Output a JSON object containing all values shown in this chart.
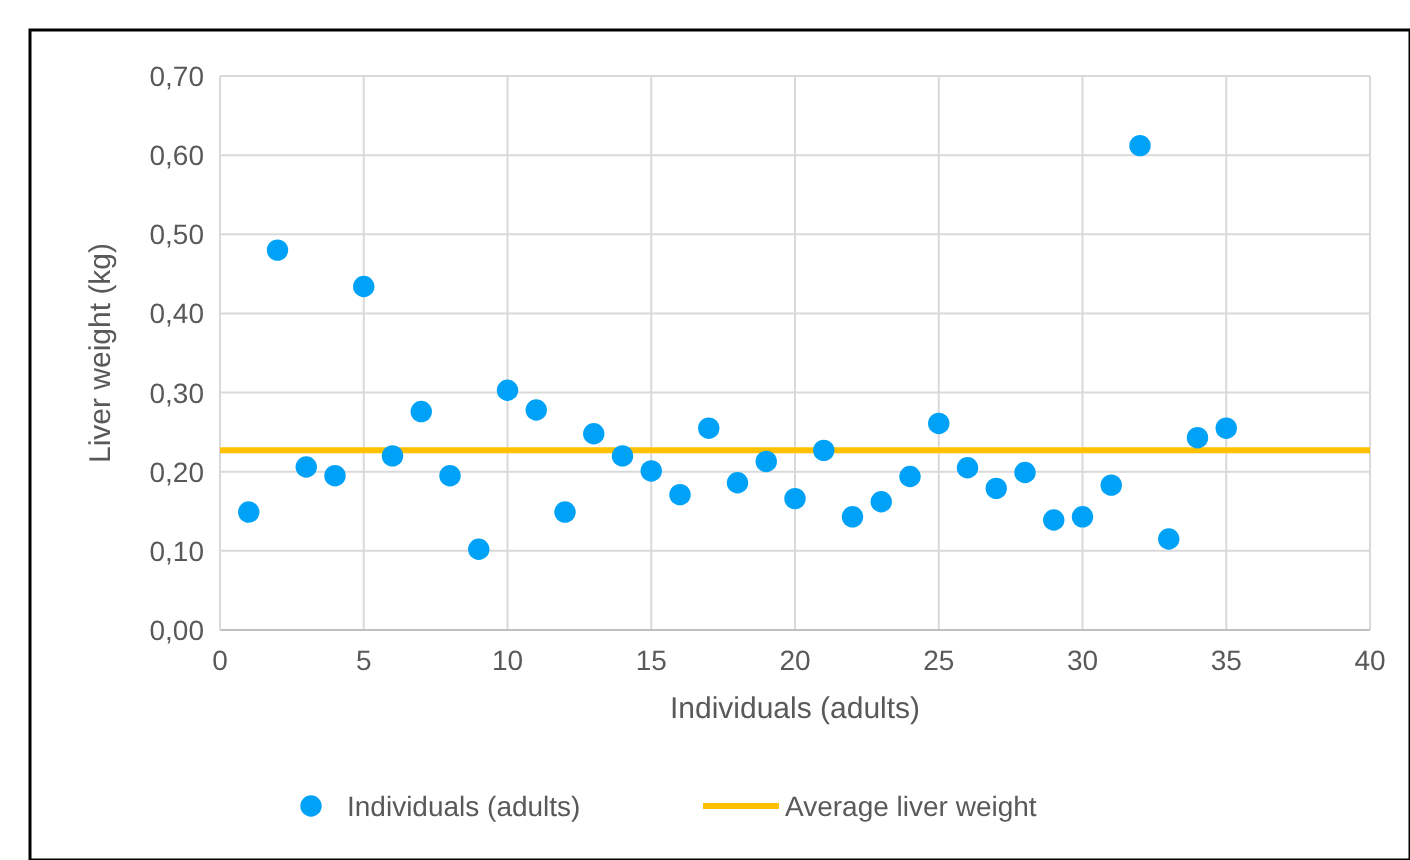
{
  "chart_data": {
    "type": "scatter",
    "xlabel": "Individuals (adults)",
    "ylabel": "Liver weight (kg)",
    "x": [
      1,
      2,
      3,
      4,
      5,
      6,
      7,
      8,
      9,
      10,
      11,
      12,
      13,
      14,
      15,
      16,
      17,
      18,
      19,
      20,
      21,
      22,
      23,
      24,
      25,
      26,
      27,
      28,
      29,
      30,
      31,
      32,
      33,
      34,
      35
    ],
    "series": [
      {
        "name": "Individuals (adults)",
        "color": "#00a2f8",
        "values": [
          0.149,
          0.48,
          0.206,
          0.195,
          0.434,
          0.22,
          0.276,
          0.195,
          0.102,
          0.303,
          0.278,
          0.149,
          0.248,
          0.22,
          0.201,
          0.171,
          0.255,
          0.186,
          0.213,
          0.166,
          0.227,
          0.143,
          0.162,
          0.194,
          0.261,
          0.205,
          0.179,
          0.199,
          0.139,
          0.143,
          0.183,
          0.612,
          0.115,
          0.243,
          0.255
        ]
      }
    ],
    "ref_lines": [
      {
        "axis": "y",
        "value": 0.227,
        "label": "Average liver weight",
        "color": "#ffc000",
        "line_style": "solid"
      }
    ],
    "xlim": [
      0,
      40
    ],
    "xticks": [
      0,
      5,
      10,
      15,
      20,
      25,
      30,
      35,
      40
    ],
    "ylim": [
      0,
      0.7
    ],
    "yticks": [
      {
        "value": 0,
        "label": "0,00"
      },
      {
        "value": 0.1,
        "label": "0,10"
      },
      {
        "value": 0.2,
        "label": "0,20"
      },
      {
        "value": 0.3,
        "label": "0,30"
      },
      {
        "value": 0.4,
        "label": "0,40"
      },
      {
        "value": 0.5,
        "label": "0,50"
      },
      {
        "value": 0.6,
        "label": "0,60"
      },
      {
        "value": 0.7,
        "label": "0,70"
      }
    ],
    "grid": true,
    "legend": "bottom",
    "marker": "circle"
  }
}
